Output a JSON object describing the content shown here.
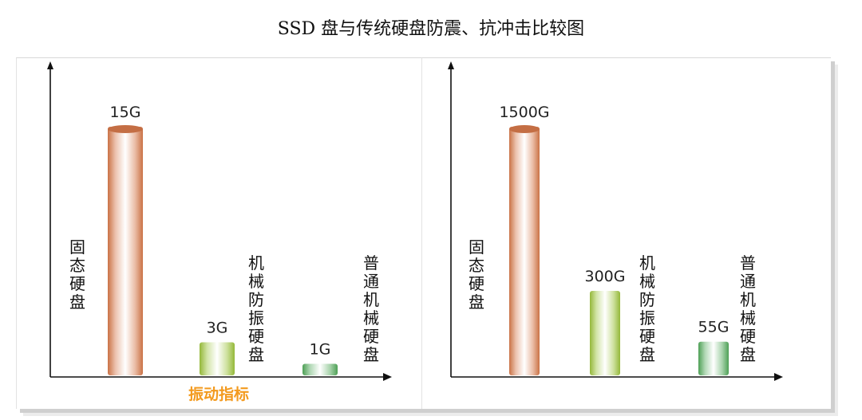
{
  "page": {
    "title": "SSD 盘与传统硬盘防震、抗冲击比较图"
  },
  "chart_data": [
    {
      "type": "bar",
      "title": "",
      "xlabel": "振动指标",
      "ylabel": "",
      "unit": "G",
      "categories": [
        "固态硬盘",
        "机械防振硬盘",
        "普通机械硬盘"
      ],
      "values": [
        15,
        3,
        1
      ],
      "value_labels": [
        "15G",
        "3G",
        "1G"
      ],
      "bar_colors": [
        "#d5784a",
        "#9cc23c",
        "#52a85a"
      ],
      "xlabel_color": "#f39a1e",
      "grid": false,
      "legend": "none"
    },
    {
      "type": "bar",
      "title": "",
      "xlabel": "",
      "ylabel": "",
      "unit": "G",
      "categories": [
        "固态硬盘",
        "机械防振硬盘",
        "普通机械硬盘"
      ],
      "values": [
        1500,
        300,
        55
      ],
      "value_labels": [
        "1500G",
        "300G",
        "55G"
      ],
      "bar_colors": [
        "#d5784a",
        "#9cc23c",
        "#52a85a"
      ],
      "grid": false,
      "legend": "none"
    }
  ]
}
